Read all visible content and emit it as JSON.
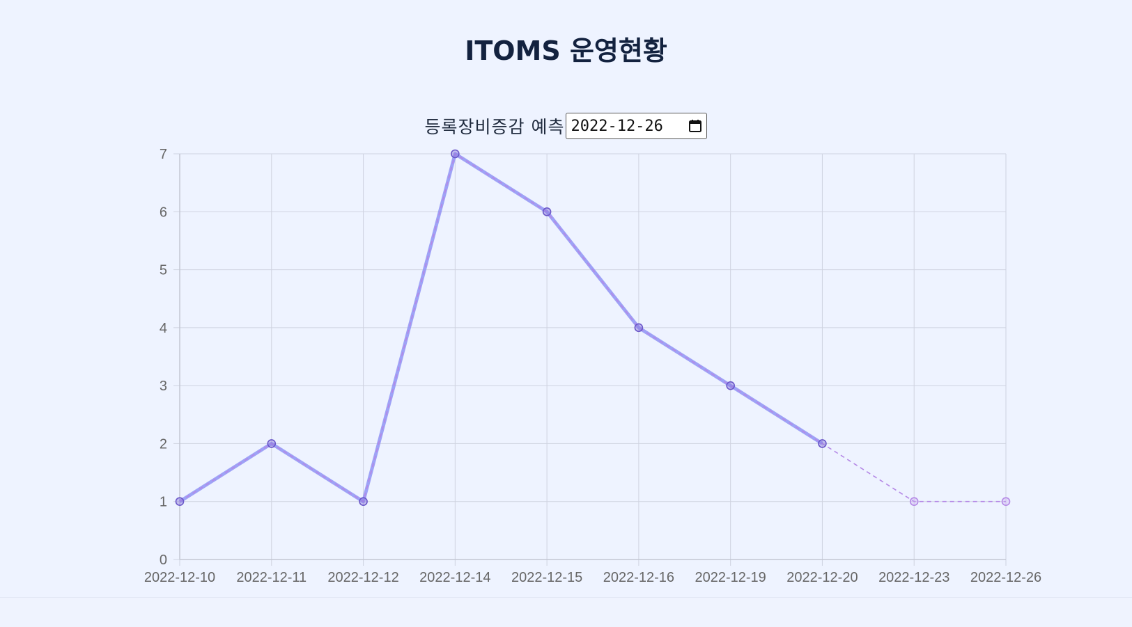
{
  "page": {
    "title": "ITOMS 운영현황"
  },
  "forecast": {
    "label": "등록장비증감 예측",
    "date_value": "2022-12-26"
  },
  "icons": {
    "date_picker": "calendar-icon"
  },
  "colors": {
    "background": "#eef3ff",
    "actual_line": "#8f93f5",
    "actual_point": "#6a57c9",
    "forecast_line": "#b488e6",
    "grid": "#cfd3e0"
  },
  "chart_data": {
    "type": "line",
    "title": "",
    "xlabel": "",
    "ylabel": "",
    "categories": [
      "2022-12-10",
      "2022-12-11",
      "2022-12-12",
      "2022-12-14",
      "2022-12-15",
      "2022-12-16",
      "2022-12-19",
      "2022-12-20",
      "2022-12-23",
      "2022-12-26"
    ],
    "ylim": [
      0,
      7
    ],
    "yticks": [
      0,
      1,
      2,
      3,
      4,
      5,
      6,
      7
    ],
    "grid": true,
    "series": [
      {
        "style": "solid",
        "values": [
          1,
          2,
          1,
          7,
          6,
          4,
          3,
          2,
          null,
          null
        ]
      },
      {
        "style": "dashed",
        "values": [
          1,
          2,
          1,
          7,
          6,
          4,
          3,
          2,
          1,
          1
        ]
      }
    ]
  }
}
